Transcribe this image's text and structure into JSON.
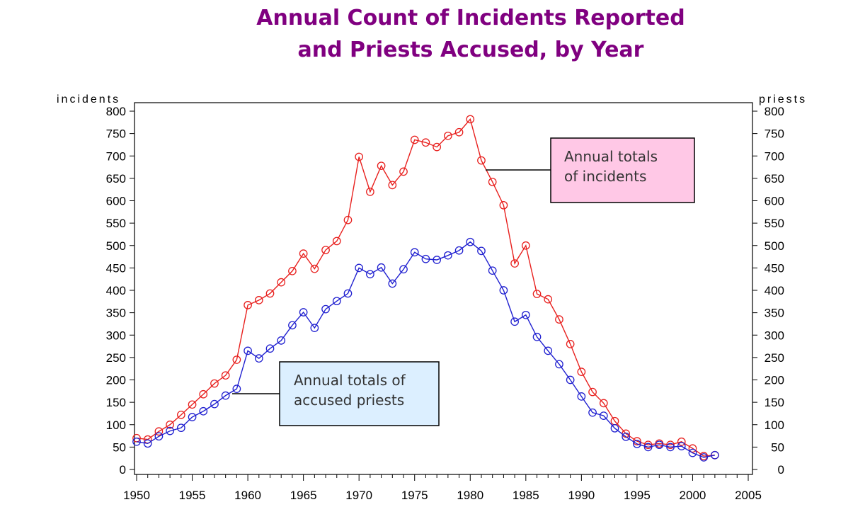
{
  "chart_data": {
    "type": "line",
    "title_lines": [
      "Annual Count of Incidents Reported",
      "and Priests Accused, by Year"
    ],
    "ylabel_left": "incidents",
    "ylabel_right": "priests",
    "xlim": [
      1950,
      2005
    ],
    "ylim": [
      0,
      800
    ],
    "x_ticks": [
      1950,
      1955,
      1960,
      1965,
      1970,
      1975,
      1980,
      1985,
      1990,
      1995,
      2000,
      2005
    ],
    "y_ticks": [
      0,
      50,
      100,
      150,
      200,
      250,
      300,
      350,
      400,
      450,
      500,
      550,
      600,
      650,
      700,
      750,
      800
    ],
    "x": [
      1950,
      1951,
      1952,
      1953,
      1954,
      1955,
      1956,
      1957,
      1958,
      1959,
      1960,
      1961,
      1962,
      1963,
      1964,
      1965,
      1966,
      1967,
      1968,
      1969,
      1970,
      1971,
      1972,
      1973,
      1974,
      1975,
      1976,
      1977,
      1978,
      1979,
      1980,
      1981,
      1982,
      1983,
      1984,
      1985,
      1986,
      1987,
      1988,
      1989,
      1990,
      1991,
      1992,
      1993,
      1994,
      1995,
      1996,
      1997,
      1998,
      1999,
      2000,
      2001,
      2002
    ],
    "series": [
      {
        "name": "Annual totals of incidents",
        "color": "#e8201e",
        "values": [
          70,
          67,
          85,
          100,
          122,
          145,
          168,
          192,
          210,
          245,
          367,
          378,
          393,
          418,
          443,
          482,
          448,
          490,
          510,
          557,
          698,
          620,
          678,
          635,
          665,
          736,
          730,
          720,
          745,
          753,
          782,
          690,
          642,
          590,
          460,
          500,
          392,
          380,
          335,
          280,
          218,
          173,
          148,
          108,
          80,
          63,
          55,
          58,
          55,
          62,
          47,
          30,
          32
        ]
      },
      {
        "name": "Annual totals of accused priests",
        "color": "#2020d0",
        "values": [
          62,
          58,
          74,
          86,
          93,
          117,
          130,
          146,
          165,
          180,
          265,
          248,
          270,
          288,
          322,
          351,
          316,
          358,
          376,
          393,
          450,
          436,
          451,
          415,
          447,
          485,
          470,
          468,
          478,
          489,
          508,
          488,
          444,
          400,
          330,
          345,
          296,
          265,
          235,
          200,
          163,
          127,
          120,
          92,
          73,
          57,
          50,
          55,
          50,
          52,
          37,
          27,
          32
        ]
      }
    ],
    "annotations": [
      {
        "line1": "Annual totals",
        "line2": "of incidents",
        "bg": "#ffc8e6"
      },
      {
        "line1": "Annual totals of",
        "line2": "accused priests",
        "bg": "#dcefff"
      }
    ]
  }
}
